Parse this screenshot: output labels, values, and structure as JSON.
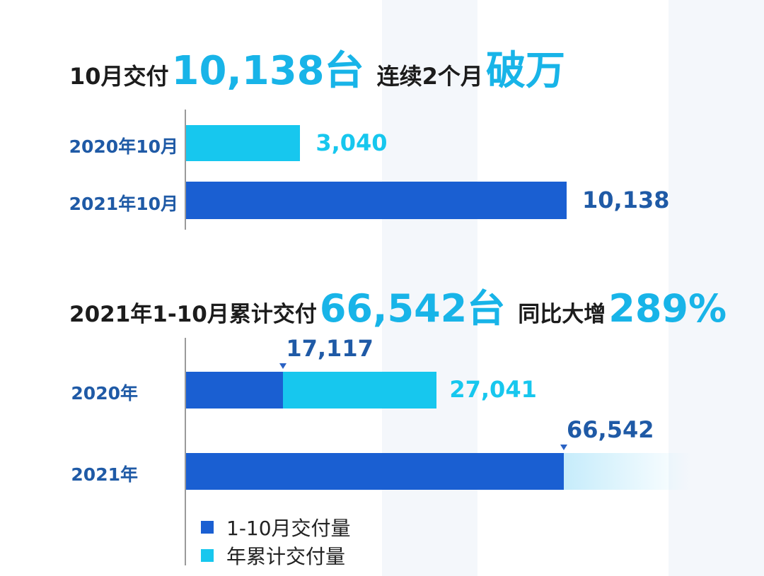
{
  "headline1": {
    "part1": "10月交付",
    "part2": "10,138台",
    "part3": "连续2个月",
    "part4": "破万"
  },
  "headline2": {
    "part1": "2021年1-10月累计交付",
    "part2": "66,542台",
    "part3": "同比大增",
    "part4": "289%"
  },
  "colors": {
    "dark_blue": "#1a5fd2",
    "cyan": "#17c7ee",
    "label_blue": "#1f5aa6",
    "headline_cyan": "#18b4e8"
  },
  "chart_data": [
    {
      "type": "bar",
      "orientation": "horizontal",
      "categories": [
        "2020年10月",
        "2021年10月"
      ],
      "values": [
        3040,
        10138
      ],
      "value_labels": [
        "3,040",
        "10,138"
      ],
      "bar_colors": [
        "#17c7ee",
        "#1a5fd2"
      ],
      "xlim": [
        0,
        10138
      ]
    },
    {
      "type": "bar",
      "orientation": "horizontal",
      "categories": [
        "2020年",
        "2021年"
      ],
      "series": [
        {
          "name": "1-10月交付量",
          "color": "#1a5fd2",
          "values": [
            17117,
            66542
          ],
          "labels": [
            "17,117",
            "66,542"
          ]
        },
        {
          "name": "年累计交付量",
          "color": "#17c7ee",
          "values": [
            27041,
            null
          ],
          "labels": [
            "27,041",
            ""
          ]
        }
      ],
      "xlim": [
        0,
        66542
      ]
    }
  ]
}
